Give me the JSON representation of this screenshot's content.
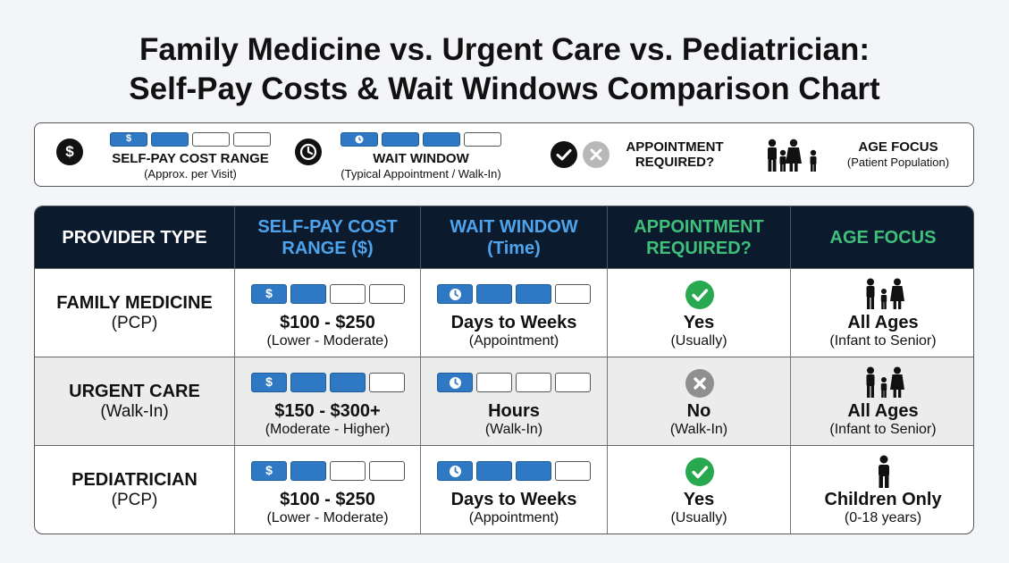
{
  "title": {
    "line1": "Family Medicine vs. Urgent Care vs. Pediatrician:",
    "line2": "Self-Pay Costs & Wait Windows Comparison Chart"
  },
  "legend": {
    "cost": {
      "icon": "dollar-icon",
      "symbol": "$",
      "label": "SELF-PAY COST RANGE",
      "sub": "(Approx. per Visit)",
      "level": 2
    },
    "wait": {
      "icon": "clock-icon",
      "label": "WAIT WINDOW",
      "sub": "(Typical Appointment / Walk-In)",
      "level": 3
    },
    "appointment": {
      "icons": [
        "check-icon",
        "x-icon"
      ],
      "label_line1": "APPOINTMENT",
      "label_line2": "REQUIRED?"
    },
    "age": {
      "icon": "family-icon",
      "label": "AGE FOCUS",
      "sub": "(Patient Population)"
    }
  },
  "colors": {
    "header_bg": "#0c1a2e",
    "accent_blue": "#4ea4ec",
    "accent_green": "#3fc07a",
    "bar_fill": "#2f79c4",
    "check_green": "#28a84f",
    "x_grey": "#8f8f8f"
  },
  "chart_data": {
    "type": "table",
    "columns": [
      {
        "line1": "PROVIDER TYPE",
        "line2": ""
      },
      {
        "line1": "SELF-PAY COST",
        "line2": "RANGE ($)"
      },
      {
        "line1": "WAIT WINDOW",
        "line2": "(Time)"
      },
      {
        "line1": "APPOINTMENT",
        "line2": "REQUIRED?"
      },
      {
        "line1": "AGE FOCUS",
        "line2": ""
      }
    ],
    "rows": [
      {
        "provider": "FAMILY MEDICINE",
        "provider_sub": "(PCP)",
        "cost": "$100 - $250",
        "cost_sub": "(Lower - Moderate)",
        "cost_level": 2,
        "wait": "Days to Weeks",
        "wait_sub": "(Appointment)",
        "wait_level": 3,
        "appointment": "Yes",
        "appointment_sub": "(Usually)",
        "appointment_icon": "check-icon",
        "age": "All Ages",
        "age_sub": "(Infant to Senior)",
        "age_icon": "family-icon"
      },
      {
        "provider": "URGENT CARE",
        "provider_sub": "(Walk-In)",
        "cost": "$150 - $300+",
        "cost_sub": "(Moderate - Higher)",
        "cost_level": 3,
        "wait": "Hours",
        "wait_sub": "(Walk-In)",
        "wait_level": 1,
        "appointment": "No",
        "appointment_sub": "(Walk-In)",
        "appointment_icon": "x-icon",
        "age": "All Ages",
        "age_sub": "(Infant to Senior)",
        "age_icon": "family-icon"
      },
      {
        "provider": "PEDIATRICIAN",
        "provider_sub": "(PCP)",
        "cost": "$100 - $250",
        "cost_sub": "(Lower - Moderate)",
        "cost_level": 2,
        "wait": "Days to Weeks",
        "wait_sub": "(Appointment)",
        "wait_level": 3,
        "appointment": "Yes",
        "appointment_sub": "(Usually)",
        "appointment_icon": "check-icon",
        "age": "Children Only",
        "age_sub": "(0-18 years)",
        "age_icon": "child-icon"
      }
    ]
  }
}
